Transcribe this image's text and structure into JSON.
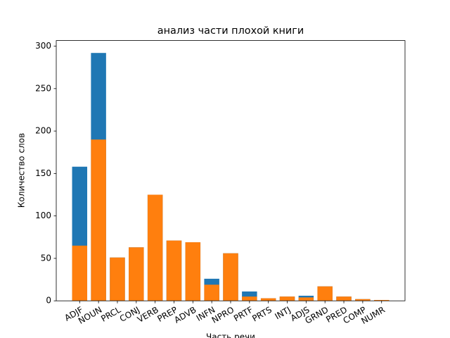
{
  "chart_data": {
    "type": "bar",
    "title": "анализ части плохой книги",
    "x_label": "Часть речи",
    "y_label": "Количество слов",
    "categories": [
      "ADJF",
      "NOUN",
      "PRCL",
      "CONJ",
      "VERB",
      "PREP",
      "ADVB",
      "INFN",
      "NPRO",
      "PRTF",
      "PRTS",
      "INTJ",
      "ADJS",
      "GRND",
      "PRED",
      "COMP",
      "NUMR"
    ],
    "series": [
      {
        "color": "#1f77b4",
        "values": [
          158,
          292,
          51,
          63,
          125,
          71,
          69,
          26,
          56,
          11,
          3,
          5,
          6,
          17,
          5,
          2,
          1
        ]
      },
      {
        "color": "#ff7f0e",
        "values": [
          65,
          190,
          51,
          63,
          125,
          71,
          69,
          19,
          56,
          5,
          3,
          5,
          4,
          17,
          5,
          2,
          1
        ]
      }
    ],
    "ylim": [
      0,
      306.6
    ],
    "yticks": [
      0,
      50,
      100,
      150,
      200,
      250,
      300
    ],
    "grid": false
  }
}
